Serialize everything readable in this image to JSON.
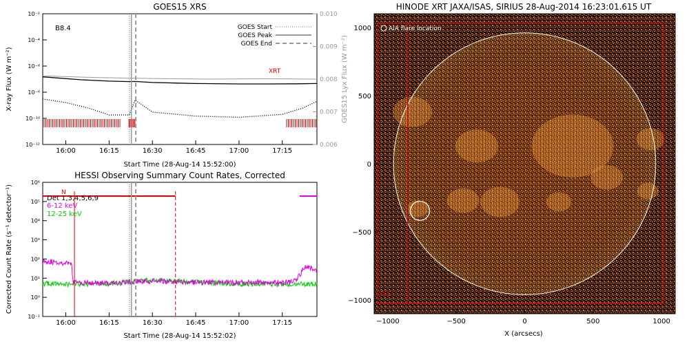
{
  "chart_data": [
    {
      "type": "line",
      "title": "GOES15 XRS",
      "xlabel": "Start Time (28-Aug-14 15:52:00)",
      "ylabel": "X-ray Flux (W m⁻²)",
      "y2label": "GOES15 Lyx Flux (W m⁻²)",
      "x_ticks": [
        "16:00",
        "16:15",
        "16:30",
        "16:45",
        "17:00",
        "17:15"
      ],
      "xlim": [
        "15:52",
        "17:27"
      ],
      "y_scale": "log",
      "ylim": [
        1e-12,
        0.01
      ],
      "y_ticks": [
        "10⁻¹²",
        "10⁻¹⁰",
        "10⁻⁸",
        "10⁻⁶",
        "10⁻⁴",
        "10⁻²"
      ],
      "y2lim": [
        0.006,
        0.01
      ],
      "y2_ticks": [
        "0.006",
        "0.007",
        "0.008",
        "0.009",
        "0.010"
      ],
      "class_label": "B8.4",
      "marker_label": "XRT",
      "legend": [
        "GOES Start",
        "GOES Peak",
        "GOES End"
      ],
      "legend_position": "top-right",
      "goes_start_time": "16:22",
      "goes_peak_time": "16:24",
      "series": [
        {
          "name": "",
          "color": "#000000",
          "x": [
            "15:52",
            "16:05",
            "16:15",
            "16:22",
            "16:24",
            "16:30",
            "16:45",
            "17:00",
            "17:10",
            "17:20",
            "17:27"
          ],
          "values": [
            1.5e-07,
            9e-08,
            7e-08,
            6.5e-08,
            6.6e-08,
            5.5e-08,
            4.6e-08,
            4.3e-08,
            4.3e-08,
            4.4e-08,
            4.6e-08
          ]
        },
        {
          "name": "",
          "color": "#999999",
          "x": [
            "15:52",
            "16:10",
            "16:30",
            "16:50",
            "17:10",
            "17:27"
          ],
          "y2_values": [
            0.0081,
            0.00805,
            0.00802,
            0.008,
            0.00801,
            0.008
          ]
        },
        {
          "name": "",
          "color": "#000000",
          "style": "dotted",
          "x": [
            "15:52",
            "16:00",
            "16:08",
            "16:15",
            "16:22",
            "16:24",
            "16:30",
            "16:45",
            "17:00",
            "17:15",
            "17:22",
            "17:27"
          ],
          "values": [
            3e-09,
            1.6e-09,
            6e-10,
            1.8e-10,
            1.8e-10,
            2.5e-09,
            3e-10,
            1.5e-10,
            1.2e-10,
            2e-10,
            6e-10,
            2e-09
          ]
        }
      ]
    },
    {
      "type": "line",
      "title": "HESSI Observing Summary Count Rates, Corrected",
      "xlabel": "Start Time (28-Aug-14 15:52:02)",
      "ylabel": "Corrected Count Rate (s⁻¹ detector⁻¹)",
      "x_ticks": [
        "16:00",
        "16:15",
        "16:30",
        "16:45",
        "17:00",
        "17:15"
      ],
      "xlim": [
        "15:52",
        "17:27"
      ],
      "y_scale": "log",
      "ylim": [
        0.1,
        1000000.0
      ],
      "y_ticks": [
        "10⁻¹",
        "10⁰",
        "10¹",
        "10²",
        "10³",
        "10⁴",
        "10⁵",
        "10⁶"
      ],
      "legend": [
        "Det 1,3,4,5,6,9",
        "6-12 keV",
        "12-25 keV"
      ],
      "legend_colors": [
        "#000000",
        "#e000e0",
        "#00d000"
      ],
      "flag_label": "N",
      "night_start": "16:03",
      "night_end": "16:38",
      "series": [
        {
          "name": "6-12 keV",
          "color": "#e000e0",
          "x": [
            "15:52",
            "16:00",
            "16:02",
            "16:02.5",
            "16:15",
            "16:30",
            "16:45",
            "17:00",
            "17:10",
            "17:17",
            "17:20",
            "17:23",
            "17:27"
          ],
          "values": [
            80,
            60,
            50,
            6,
            5.5,
            7,
            6,
            6,
            6,
            6,
            9,
            40,
            25
          ]
        },
        {
          "name": "12-25 keV",
          "color": "#00d000",
          "x": [
            "15:52",
            "16:02",
            "16:15",
            "16:30",
            "16:45",
            "17:00",
            "17:15",
            "17:27"
          ],
          "values": [
            5,
            5,
            5,
            8,
            6,
            5,
            5,
            5
          ]
        }
      ]
    },
    {
      "type": "heatmap",
      "title": "HINODE XRT JAXA/ISAS, SIRIUS 28-Aug-2014 16:23:01.615 UT",
      "xlabel": "X (arcsecs)",
      "ylabel": "",
      "xlim": [
        -1100,
        1100
      ],
      "ylim": [
        -1100,
        1100
      ],
      "x_ticks": [
        "−1000",
        "−500",
        "0",
        "500",
        "1000"
      ],
      "y_ticks": [
        "−1000",
        "−500",
        "0",
        "500",
        "1000"
      ],
      "legend": [
        "AIA flare location"
      ],
      "colormap": "black-orange-white",
      "solar_radius": 958,
      "flare_location": [
        -765,
        -345
      ],
      "flare_circle_radius": 70,
      "bottom_left_label": "Rot"
    }
  ]
}
